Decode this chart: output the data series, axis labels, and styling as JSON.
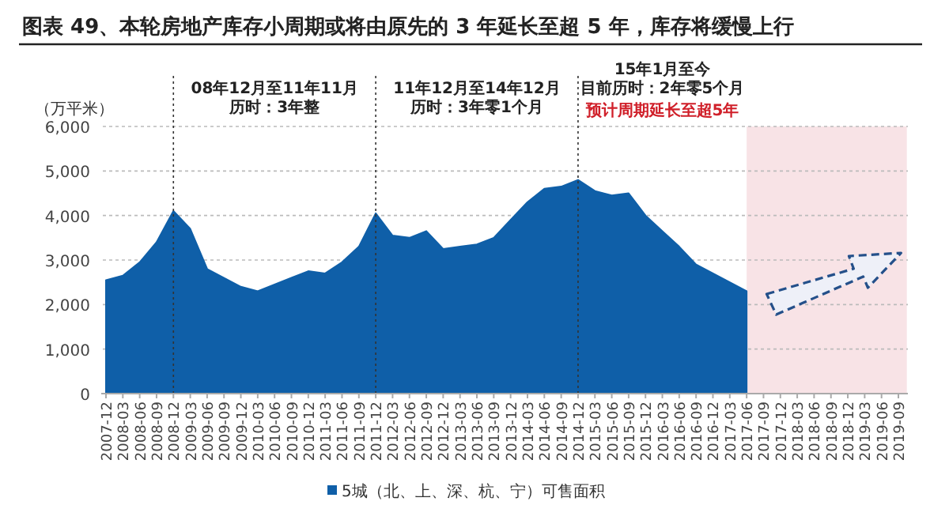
{
  "chart_data": {
    "type": "area",
    "title": "图表 49、本轮房地产库存小周期或将由原先的 3 年延长至超 5 年，库存将缓慢上行",
    "ylabel": "（万平米）",
    "categories": [
      "2007-12",
      "2008-03",
      "2008-06",
      "2008-09",
      "2008-12",
      "2009-03",
      "2009-06",
      "2009-09",
      "2009-12",
      "2010-03",
      "2010-06",
      "2010-09",
      "2010-12",
      "2011-03",
      "2011-06",
      "2011-09",
      "2011-12",
      "2012-03",
      "2012-06",
      "2012-09",
      "2012-12",
      "2013-03",
      "2013-06",
      "2013-09",
      "2013-12",
      "2014-03",
      "2014-06",
      "2014-09",
      "2014-12",
      "2015-03",
      "2015-06",
      "2015-09",
      "2015-12",
      "2016-03",
      "2016-06",
      "2016-09",
      "2016-12",
      "2017-03",
      "2017-06",
      "2017-09",
      "2017-12",
      "2018-03",
      "2018-06",
      "2018-09",
      "2018-12",
      "2019-03",
      "2019-06",
      "2019-09"
    ],
    "series": [
      {
        "name": "5城（北、上、深、杭、宁）可售面积",
        "color": "#0f5fa8",
        "values": [
          2550,
          2650,
          2950,
          3400,
          4100,
          3700,
          2800,
          2600,
          2400,
          2300,
          2450,
          2600,
          2750,
          2700,
          2950,
          3300,
          4050,
          3550,
          3500,
          3650,
          3250,
          3300,
          3350,
          3500,
          3900,
          4300,
          4600,
          4650,
          4800,
          4550,
          4450,
          4500,
          4000,
          3650,
          3300,
          2900,
          2700,
          2500,
          2300,
          null,
          null,
          null,
          null,
          null,
          null,
          null,
          null,
          null
        ]
      }
    ],
    "ylim": [
      0,
      6000
    ],
    "yticks": [
      0,
      {
        "value": 1000,
        "label": "1,000"
      },
      {
        "value": 2000,
        "label": "2,000"
      },
      {
        "value": 3000,
        "label": "3,000"
      },
      {
        "value": 4000,
        "label": "4,000"
      },
      {
        "value": 5000,
        "label": "5,000"
      },
      {
        "value": 6000,
        "label": "6,000"
      }
    ],
    "grid": "y",
    "legend": "bottom",
    "ref_lines": [
      {
        "axis": "x",
        "value": "2008-12",
        "line_style": "dotted"
      },
      {
        "axis": "x",
        "value": "2011-12",
        "line_style": "dotted"
      },
      {
        "axis": "x",
        "value": "2014-12",
        "line_style": "dotted"
      }
    ],
    "bands": [
      {
        "axis": "x",
        "from": "2017-06",
        "to": "2019-09",
        "label": "预计周期延长至超5年",
        "color": "#f8e3e6"
      }
    ],
    "annotations": [
      "08年12月至11年11月",
      "历时：3年整",
      "11年12月至14年12月",
      "历时：3年零1个月",
      "15年1月至今",
      "目前历时：2年零5个月"
    ]
  }
}
